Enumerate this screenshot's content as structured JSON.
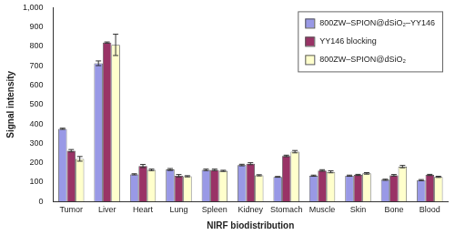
{
  "chart_data": {
    "type": "bar",
    "x_label": "NIRF biodistribution",
    "y_label": "Signal intensity",
    "categories": [
      "Tumor",
      "Liver",
      "Heart",
      "Lung",
      "Spleen",
      "Kidney",
      "Stomach",
      "Muscle",
      "Skin",
      "Bone",
      "Blood"
    ],
    "series": [
      {
        "name": "800ZW–SPION@dSiO₂–YY146",
        "color": "#9999e6",
        "values": [
          375,
          713,
          140,
          165,
          163,
          188,
          127,
          133,
          133,
          112,
          110
        ],
        "errors": [
          3,
          12,
          3,
          5,
          4,
          4,
          2,
          3,
          3,
          3,
          3
        ]
      },
      {
        "name": "YY146 blocking",
        "color": "#993366",
        "values": [
          262,
          820,
          183,
          133,
          163,
          195,
          235,
          160,
          137,
          135,
          137
        ],
        "errors": [
          6,
          3,
          8,
          6,
          4,
          5,
          4,
          4,
          3,
          4,
          3
        ]
      },
      {
        "name": "800ZW–SPION@dSiO₂",
        "color": "#ffffcc",
        "values": [
          220,
          808,
          163,
          130,
          158,
          135,
          257,
          153,
          145,
          180,
          127
        ],
        "errors": [
          12,
          55,
          4,
          3,
          3,
          3,
          6,
          5,
          4,
          6,
          3
        ]
      }
    ],
    "ylim": [
      0,
      1000
    ],
    "yticks": [
      0,
      100,
      200,
      300,
      400,
      500,
      600,
      700,
      800,
      900,
      {
        "value": 1000,
        "label": "1,000"
      }
    ],
    "grid": false,
    "legend": "top-right"
  }
}
